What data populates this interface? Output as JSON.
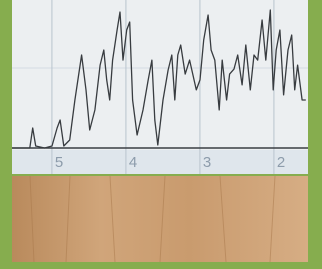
{
  "chart_data": {
    "type": "line",
    "x": [
      5.58,
      5.34,
      5.3,
      5.26,
      5.14,
      5.04,
      4.97,
      4.93,
      4.88,
      4.8,
      4.73,
      4.64,
      4.58,
      4.53,
      4.46,
      4.39,
      4.34,
      4.3,
      4.26,
      4.22,
      4.16,
      4.12,
      4.08,
      4.03,
      3.99,
      3.95,
      3.89,
      3.81,
      3.74,
      3.69,
      3.65,
      3.61,
      3.54,
      3.47,
      3.42,
      3.38,
      3.34,
      3.3,
      3.24,
      3.18,
      3.09,
      3.04,
      2.99,
      2.93,
      2.89,
      2.84,
      2.78,
      2.74,
      2.68,
      2.64,
      2.58,
      2.53,
      2.47,
      2.42,
      2.36,
      2.31,
      2.26,
      2.2,
      2.15,
      2.09,
      2.05,
      2.01,
      1.96,
      1.91,
      1.85,
      1.8,
      1.76,
      1.72,
      1.66,
      1.61
    ],
    "values": [
      0,
      0,
      14,
      1.4,
      0,
      1.4,
      14,
      19.6,
      1.4,
      5.6,
      33.6,
      65,
      40.6,
      12.6,
      26.6,
      58,
      68.5,
      47.6,
      33.6,
      61.5,
      82.5,
      95.1,
      61.5,
      82.5,
      88.1,
      33.6,
      9.1,
      26.6,
      47.6,
      61.5,
      19.6,
      2.1,
      33.6,
      54.5,
      65,
      33.6,
      65,
      72,
      51.7,
      61.5,
      40.6,
      47.6,
      75.5,
      93,
      68.5,
      61.5,
      26.6,
      61.5,
      33.6,
      51.7,
      55.2,
      65,
      44.1,
      72,
      40.6,
      65,
      61.5,
      89.5,
      61.5,
      96.5,
      40.6,
      68.5,
      82.5,
      37.1,
      68.5,
      79,
      40.6,
      58,
      33.6,
      33.6
    ],
    "color": "#383c40",
    "xlim": [
      5.58,
      1.58
    ],
    "xticks": [
      5,
      4,
      3,
      2
    ],
    "ylim": [
      0,
      100
    ],
    "grid": true
  }
}
